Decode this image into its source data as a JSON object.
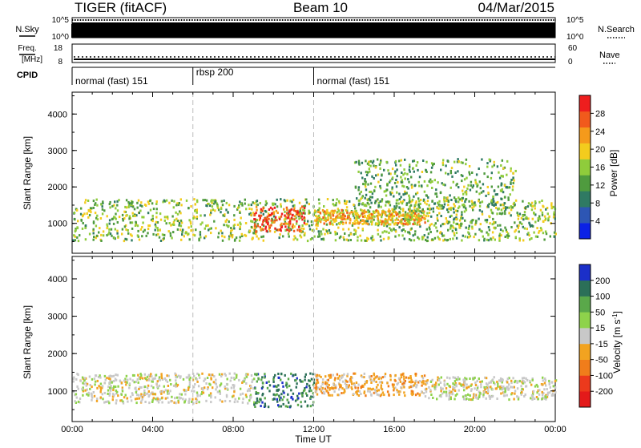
{
  "header": {
    "station": "TIGER (fitACF)",
    "beam": "Beam 10",
    "date": "04/Mar/2015"
  },
  "top_panels": {
    "nsky": {
      "label": "N.Sky",
      "tick_top": "10^5",
      "tick_bottom": "10^0"
    },
    "nsearch": {
      "label": "N.Search",
      "tick_top": "10^5",
      "tick_bottom": "10^0"
    },
    "freq": {
      "label_line1": "Freq.",
      "label_line2": "[MHz]",
      "tick_top": "18",
      "tick_bottom": "8"
    },
    "nave": {
      "label": "Nave",
      "tick_top": "60",
      "tick_bottom": "0"
    },
    "cpid": {
      "label": "CPID"
    }
  },
  "cpid_modes": [
    {
      "label": "normal (fast) 151",
      "start_hour": 0,
      "end_hour": 6
    },
    {
      "label": "rbsp 200",
      "start_hour": 6,
      "end_hour": 12
    },
    {
      "label": "normal (fast) 151",
      "start_hour": 12,
      "end_hour": 24
    }
  ],
  "time_axis": {
    "label": "Time UT",
    "ticks": [
      "00:00",
      "04:00",
      "08:00",
      "12:00",
      "16:00",
      "20:00",
      "00:00"
    ]
  },
  "chart_data": [
    {
      "type": "heatmap",
      "name": "power",
      "ylabel": "Slant Range [km]",
      "yticks": [
        1000,
        2000,
        3000,
        4000
      ],
      "ylim": [
        180,
        4600
      ],
      "xlim_hours": [
        0,
        24
      ],
      "colorbar": {
        "title": "Power [dB]",
        "ticks": [
          "4",
          "8",
          "12",
          "16",
          "20",
          "24",
          "28"
        ],
        "range": [
          0,
          30
        ],
        "colors": [
          "#0b21e6",
          "#2d56b4",
          "#2f7a63",
          "#4f9b3e",
          "#8fcc3b",
          "#f3cc1d",
          "#f59a1b",
          "#f15a1c",
          "#ee1e1e"
        ]
      },
      "echo_bands": [
        {
          "range_km": [
            550,
            1700
          ],
          "hour_start": 0,
          "hour_end": 24,
          "typical_db": 14
        },
        {
          "range_km": [
            800,
            1500
          ],
          "hour_start": 9,
          "hour_end": 11.5,
          "typical_db": 28
        },
        {
          "range_km": [
            1000,
            1400
          ],
          "hour_start": 12,
          "hour_end": 17.5,
          "typical_db": 20
        },
        {
          "range_km": [
            1400,
            2800
          ],
          "hour_start": 14,
          "hour_end": 22,
          "typical_db": 12
        }
      ]
    },
    {
      "type": "heatmap",
      "name": "velocity",
      "ylabel": "Slant Range [km]",
      "yticks": [
        1000,
        2000,
        3000,
        4000
      ],
      "ylim": [
        180,
        4600
      ],
      "xlim_hours": [
        0,
        24
      ],
      "colorbar": {
        "title": "Velocity [m s^-1]",
        "ticks": [
          "200",
          "100",
          "50",
          "15",
          "-15",
          "-50",
          "-100",
          "-200"
        ],
        "range": [
          -250,
          250
        ],
        "colors": [
          "#1b2fc9",
          "#2b6f58",
          "#5aa84a",
          "#8ed34b",
          "#c8c8c8",
          "#f2a320",
          "#f07d1b",
          "#ec3a1c",
          "#e31a1a"
        ]
      },
      "echo_bands": [
        {
          "range_km": [
            700,
            1500
          ],
          "hour_start": 0,
          "hour_end": 9,
          "typical_velocity": 0
        },
        {
          "range_km": [
            600,
            1500
          ],
          "hour_start": 9,
          "hour_end": 12,
          "typical_velocity": 180
        },
        {
          "range_km": [
            900,
            1500
          ],
          "hour_start": 12,
          "hour_end": 17.5,
          "typical_velocity": -60
        },
        {
          "range_km": [
            800,
            1400
          ],
          "hour_start": 17.5,
          "hour_end": 24,
          "typical_velocity": 0
        }
      ]
    }
  ]
}
